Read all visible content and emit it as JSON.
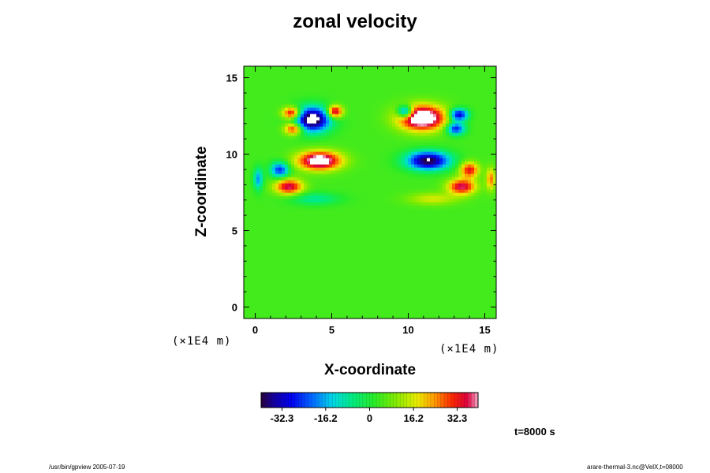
{
  "chart_data": {
    "type": "heatmap",
    "title": "zonal velocity",
    "xlabel": "X-coordinate",
    "ylabel": "Z-coordinate",
    "x_unit": "(×1E4 m)",
    "x_unit_right": "(×1E4 m)",
    "xlim": [
      -0.75,
      15.75
    ],
    "ylim": [
      -0.75,
      15.75
    ],
    "x_ticks": [
      0,
      5,
      10,
      15
    ],
    "y_ticks": [
      0,
      5,
      10,
      15
    ],
    "colorbar": {
      "vmin": -40,
      "vmax": 40,
      "ticks": [
        -32.3,
        -16.2,
        0,
        16.2,
        32.3
      ],
      "tick_labels": [
        "-32.3",
        "-16.2",
        "0",
        "16.2",
        "32.3"
      ],
      "colormap": "rainbow"
    },
    "background_value": 4,
    "features": [
      {
        "x": 4.2,
        "z": 9.6,
        "value": 45,
        "sx": 1.4,
        "sz": 0.6
      },
      {
        "x": 11.3,
        "z": 9.6,
        "value": -45,
        "sx": 1.4,
        "sz": 0.6
      },
      {
        "x": 2.2,
        "z": 7.9,
        "value": 34,
        "sx": 0.9,
        "sz": 0.5
      },
      {
        "x": 13.5,
        "z": 7.9,
        "value": 34,
        "sx": 0.9,
        "sz": 0.5
      },
      {
        "x": 1.6,
        "z": 9.0,
        "value": -30,
        "sx": 0.6,
        "sz": 0.5
      },
      {
        "x": 14.0,
        "z": 9.0,
        "value": 30,
        "sx": 0.6,
        "sz": 0.5
      },
      {
        "x": 3.7,
        "z": 12.3,
        "value": -50,
        "sx": 1.2,
        "sz": 0.8
      },
      {
        "x": 10.9,
        "z": 12.4,
        "value": 50,
        "sx": 1.5,
        "sz": 0.8
      },
      {
        "x": 2.4,
        "z": 12.7,
        "value": 38,
        "sx": 0.6,
        "sz": 0.4
      },
      {
        "x": 13.3,
        "z": 12.6,
        "value": -38,
        "sx": 0.6,
        "sz": 0.4
      },
      {
        "x": 5.2,
        "z": 12.8,
        "value": 38,
        "sx": 0.5,
        "sz": 0.4
      },
      {
        "x": 9.8,
        "z": 12.8,
        "value": -38,
        "sx": 0.5,
        "sz": 0.4
      },
      {
        "x": 2.5,
        "z": 11.7,
        "value": 33,
        "sx": 0.6,
        "sz": 0.4
      },
      {
        "x": 13.1,
        "z": 11.7,
        "value": -33,
        "sx": 0.6,
        "sz": 0.4
      },
      {
        "x": 0.2,
        "z": 8.4,
        "value": -22,
        "sx": 0.3,
        "sz": 0.7
      },
      {
        "x": 15.4,
        "z": 8.4,
        "value": 22,
        "sx": 0.3,
        "sz": 0.7
      },
      {
        "x": 3.9,
        "z": 7.1,
        "value": -12,
        "sx": 1.6,
        "sz": 0.4
      },
      {
        "x": 11.6,
        "z": 7.1,
        "value": 12,
        "sx": 1.6,
        "sz": 0.4
      }
    ]
  },
  "time_label": "t=8000 s",
  "footer_left": "/usr/bin/gpview 2005-07-19",
  "footer_right": "arare-thermal-3.nc@VelX,t=08000"
}
